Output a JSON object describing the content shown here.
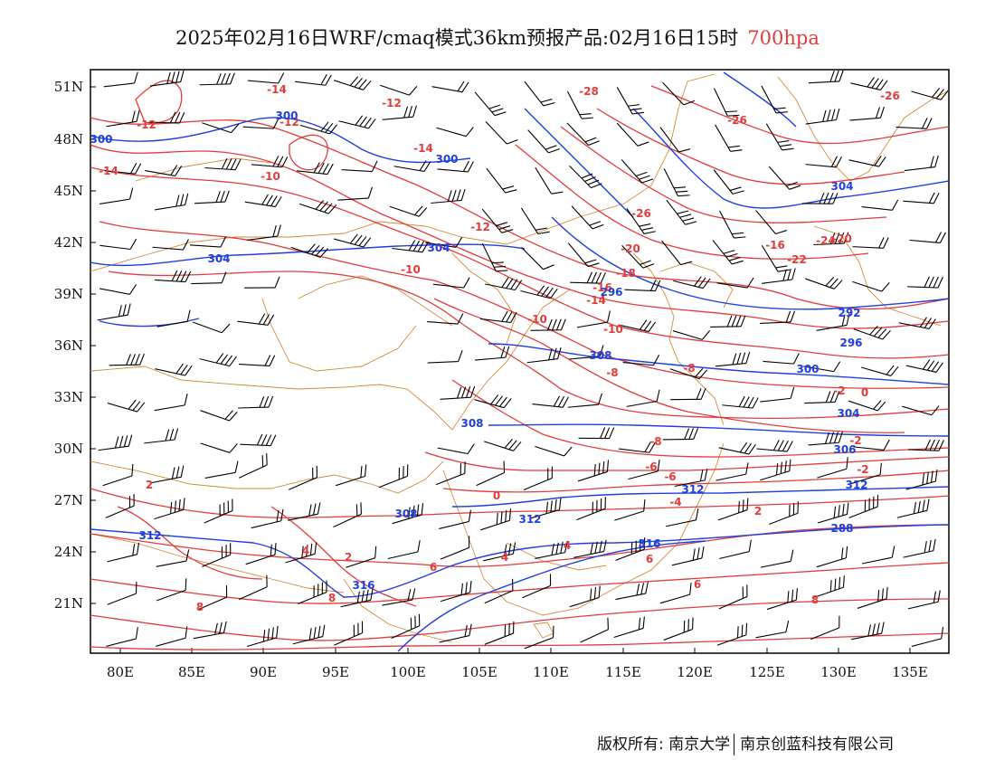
{
  "title": {
    "main": "2025年02月16日WRF/cmaq模式36km预报产品:02月16日15时",
    "level": "700hpa"
  },
  "colors": {
    "height": "#1f3fe0",
    "temperature": "#e23b3b",
    "border": "#d28a3a",
    "barb": "#000000"
  },
  "axes": {
    "lat_labels": [
      "51N",
      "48N",
      "45N",
      "42N",
      "39N",
      "36N",
      "33N",
      "30N",
      "27N",
      "24N",
      "21N"
    ],
    "lon_labels": [
      "80E",
      "85E",
      "90E",
      "95E",
      "100E",
      "105E",
      "110E",
      "115E",
      "120E",
      "125E",
      "130E",
      "135E"
    ]
  },
  "temperature_labels": [
    "-28",
    "-26",
    "-26",
    "-26",
    "-20",
    "-20",
    "-18",
    "-16",
    "-16",
    "-14",
    "-14",
    "-14",
    "-14",
    "-12",
    "-12",
    "-12",
    "-12",
    "-10",
    "-10",
    "-10",
    "-10",
    "-8",
    "-8",
    "-8",
    "-6",
    "-6",
    "-4",
    "-2",
    "-2",
    "-2",
    "0",
    "0",
    "2",
    "2",
    "2",
    "4",
    "4",
    "4",
    "6",
    "6",
    "6",
    "8",
    "8",
    "8",
    "-22",
    "-24"
  ],
  "height_labels": [
    "300",
    "300",
    "300",
    "304",
    "304",
    "304",
    "292",
    "296",
    "300",
    "304",
    "306",
    "308",
    "308",
    "308",
    "312",
    "312",
    "312",
    "312",
    "316",
    "316",
    "288",
    "296"
  ],
  "footer": {
    "copyright": "版权所有: 南京大学",
    "company": "南京创蓝科技有限公司"
  }
}
